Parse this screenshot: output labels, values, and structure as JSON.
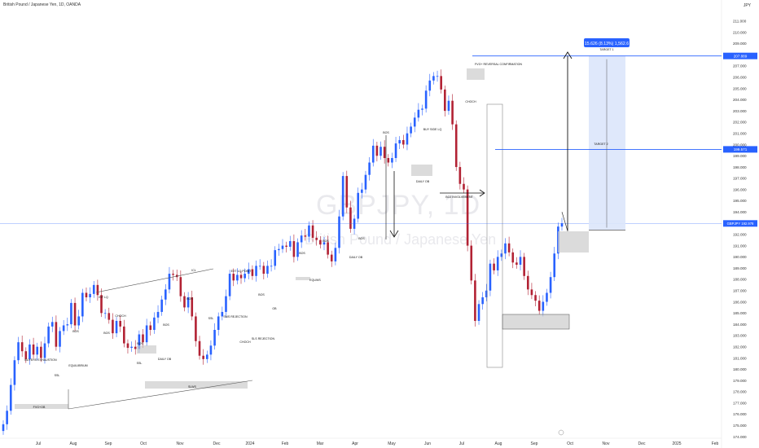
{
  "header": {
    "symbol_line": "British Pound / Japanese Yen, 1D, OANDA",
    "currency": "JPY"
  },
  "watermark": {
    "ticker": "GBPJPY, 1D",
    "name": "British Pound / Japanese Yen"
  },
  "chart_data": {
    "type": "candlestick",
    "symbol": "GBPJPY",
    "timeframe": "1D",
    "ylim": [
      174.0,
      212.0
    ],
    "y_ticks": [
      174,
      175,
      176,
      177,
      178,
      179,
      180,
      181,
      182,
      183,
      184,
      185,
      186,
      187,
      188,
      189,
      190,
      191,
      192,
      193,
      194,
      195,
      196,
      197,
      198,
      199,
      200,
      201,
      202,
      203,
      204,
      205,
      206,
      207,
      208,
      209,
      210,
      211
    ],
    "x_labels": [
      "Jul",
      "Aug",
      "Sep",
      "Oct",
      "Nov",
      "Dec",
      "2024",
      "Feb",
      "Mar",
      "Apr",
      "May",
      "Jun",
      "Jul",
      "Aug",
      "Sep",
      "Oct",
      "Nov",
      "Dec",
      "2025",
      "Feb"
    ],
    "current_price": {
      "label": "GBPJPY",
      "value": "192.978"
    },
    "target_prices": [
      "207.889",
      "199.571"
    ],
    "measure_label": "15.626 (8.13%) 1,562.6",
    "colors": {
      "up": "#2962ff",
      "down": "#b22234",
      "target_line": "#2962ff",
      "target_box": "#dbe6fb"
    },
    "closes": [
      175.1,
      176.3,
      178.6,
      180.8,
      182.4,
      181.6,
      180.9,
      182.2,
      181.3,
      182.0,
      181.0,
      182.3,
      183.8,
      184.2,
      182.0,
      183.4,
      183.9,
      184.0,
      185.9,
      183.9,
      184.7,
      186.8,
      186.4,
      186.7,
      187.5,
      186.6,
      185.0,
      185.0,
      184.4,
      183.2,
      184.3,
      183.8,
      182.3,
      181.9,
      182.0,
      181.8,
      183.1,
      182.4,
      183.9,
      183.5,
      184.6,
      185.1,
      186.2,
      187.1,
      188.5,
      188.4,
      188.2,
      186.5,
      185.5,
      186.4,
      184.7,
      182.5,
      181.2,
      180.9,
      181.3,
      182.1,
      183.5,
      184.7,
      185.1,
      186.5,
      188.5,
      187.9,
      188.4,
      188.1,
      188.5,
      188.9,
      188.3,
      189.2,
      189.2,
      188.5,
      189.2,
      189.2,
      190.6,
      190.7,
      191.0,
      190.9,
      191.4,
      190.0,
      191.3,
      191.9,
      191.8,
      192.8,
      191.7,
      191.5,
      191.1,
      191.3,
      190.2,
      189.6,
      190.8,
      193.6,
      197.2,
      194.4,
      192.5,
      193.4,
      195.7,
      196.0,
      197.3,
      198.4,
      199.9,
      199.0,
      199.8,
      198.8,
      198.4,
      198.8,
      200.1,
      200.4,
      200.0,
      201.0,
      201.6,
      202.4,
      203.1,
      203.2,
      204.8,
      205.7,
      206.1,
      206.1,
      204.9,
      203.0,
      203.9,
      201.8,
      198.0,
      196.5,
      196.0,
      191.0,
      187.9,
      184.3,
      185.8,
      186.4,
      187.0,
      189.4,
      188.8,
      190.0,
      190.3,
      191.2,
      190.4,
      189.5,
      189.3,
      190.0,
      188.3,
      187.1,
      186.6,
      186.1,
      185.2,
      186.0,
      186.8,
      188.2,
      190.3,
      192.7,
      193.0
    ],
    "annotations": [
      {
        "text": "FVG+OB"
      },
      {
        "text": "BUYERS EXHAUSTION"
      },
      {
        "text": "SSL"
      },
      {
        "text": "EQUILIBRIUM"
      },
      {
        "text": "BOS"
      },
      {
        "text": "INT LQ"
      },
      {
        "text": "BOS"
      },
      {
        "text": "CHOCH"
      },
      {
        "text": "BOS"
      },
      {
        "text": "DAILY OB"
      },
      {
        "text": "SSL"
      },
      {
        "text": "BOS"
      },
      {
        "text": "ICL"
      },
      {
        "text": "EXT LQ POINT"
      },
      {
        "text": "BOS"
      },
      {
        "text": "SSL"
      },
      {
        "text": "SMS REJECTION"
      },
      {
        "text": "CHOCH"
      },
      {
        "text": "SLS REJECTION"
      },
      {
        "text": "SLWS"
      },
      {
        "text": "BOS"
      },
      {
        "text": "OB"
      },
      {
        "text": "BOS"
      },
      {
        "text": "EQUWS"
      },
      {
        "text": "BOS"
      },
      {
        "text": "BOS"
      },
      {
        "text": "DAILY OB"
      },
      {
        "text": "BUY SIDE LQ"
      },
      {
        "text": "DAILY OB"
      },
      {
        "text": "BOS"
      },
      {
        "text": "FVG+ REVERSAL CONFIRMATION"
      },
      {
        "text": "CHOCH"
      },
      {
        "text": "BOJ INVOLVEMENT"
      },
      {
        "text": "TARGET 1"
      },
      {
        "text": "TARGET 2"
      }
    ]
  }
}
